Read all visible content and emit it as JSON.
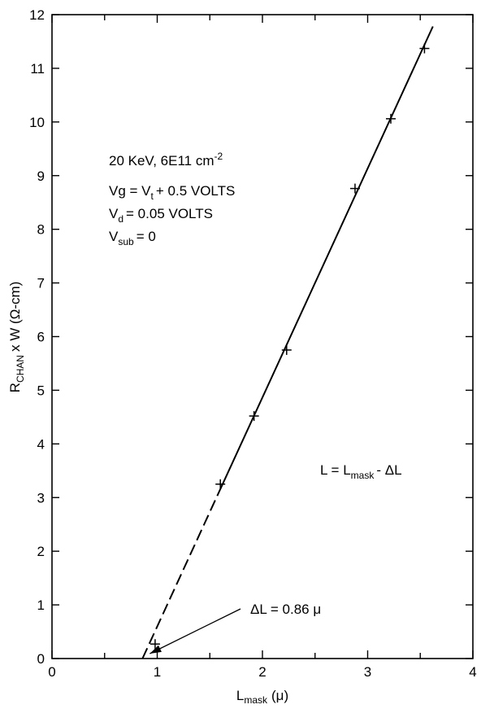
{
  "chart_data": {
    "type": "scatter",
    "title": "",
    "xlabel": {
      "main": "L",
      "sub": "mask",
      "unit": "(μ)"
    },
    "ylabel": {
      "main": "R",
      "sub": "CHAN",
      "rest": "x W (Ω-cm)"
    },
    "xlim": [
      0,
      4
    ],
    "ylim": [
      0,
      12
    ],
    "x_ticks": [
      "0",
      "1",
      "2",
      "3",
      "4"
    ],
    "y_ticks": [
      "0",
      "1",
      "2",
      "3",
      "4",
      "5",
      "6",
      "7",
      "8",
      "9",
      "10",
      "11",
      "12"
    ],
    "grid": false,
    "series": [
      {
        "marker": "plus",
        "points": [
          {
            "x": 0.98,
            "y": 0.27
          },
          {
            "x": 1.6,
            "y": 3.25
          },
          {
            "x": 1.92,
            "y": 4.52
          },
          {
            "x": 2.23,
            "y": 5.75
          },
          {
            "x": 2.88,
            "y": 8.76
          },
          {
            "x": 3.22,
            "y": 10.06
          },
          {
            "x": 3.54,
            "y": 11.37
          }
        ]
      }
    ],
    "fit_line": {
      "from": [
        0.86,
        0.0
      ],
      "to": [
        3.62,
        11.78
      ],
      "dashed_until_x": 1.6
    },
    "annotations": {
      "conditions": {
        "energy": "20 KeV, 6E11 cm",
        "energy_sup": "-2",
        "vg_a": "Vg = V",
        "vg_sub": "t",
        "vg_b": "+ 0.5 VOLTS",
        "vd_a": "V",
        "vd_sub": "d",
        "vd_b": "= 0.05 VOLTS",
        "vsub_a": "V",
        "vsub_sub": "sub",
        "vsub_b": "= 0"
      },
      "relation": {
        "a": "L = L",
        "sub": "mask",
        "b": "- ΔL"
      },
      "delta": {
        "text": "ΔL = 0.86 μ",
        "x": 0.86,
        "y": 0.0
      }
    }
  }
}
